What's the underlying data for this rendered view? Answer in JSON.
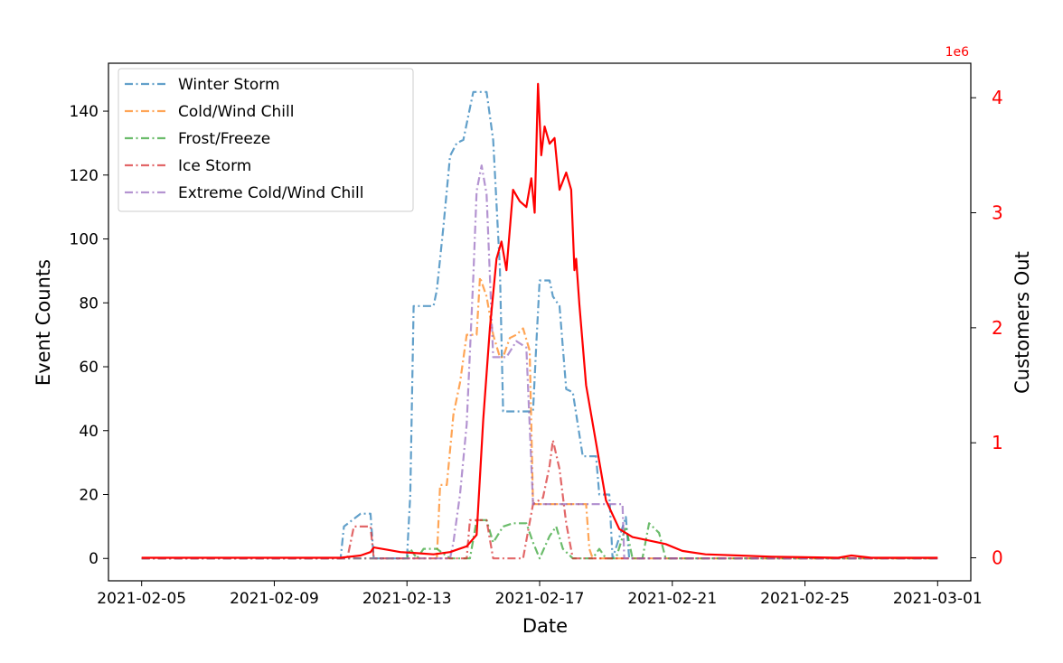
{
  "chart_data": {
    "type": "line",
    "x_type": "date",
    "xlabel": "Date",
    "ylabel": "Event Counts",
    "y2label": "Customers Out",
    "y2_offset_text": "1e6",
    "xlim": [
      "2021-02-04",
      "2021-03-02"
    ],
    "ylim": [
      -7,
      155
    ],
    "y2lim": [
      -0.2,
      4.3
    ],
    "x_ticks": [
      "2021-02-05",
      "2021-02-09",
      "2021-02-13",
      "2021-02-17",
      "2021-02-21",
      "2021-02-25",
      "2021-03-01"
    ],
    "y_ticks": [
      0,
      20,
      40,
      60,
      80,
      100,
      120,
      140
    ],
    "y2_ticks": [
      0,
      1,
      2,
      3,
      4
    ],
    "legend_position": "top-left",
    "grid": false,
    "series": [
      {
        "name": "Winter Storm",
        "color": "#1f77b4",
        "axis": "left",
        "style": "dashdot",
        "points": [
          [
            "2021-02-05",
            0
          ],
          [
            "2021-02-11",
            0
          ],
          [
            "2021-02-11.1",
            10
          ],
          [
            "2021-02-11.6",
            14
          ],
          [
            "2021-02-11.9",
            14
          ],
          [
            "2021-02-12",
            0
          ],
          [
            "2021-02-13",
            0
          ],
          [
            "2021-02-13.1",
            20
          ],
          [
            "2021-02-13.2",
            79
          ],
          [
            "2021-02-13.8",
            79
          ],
          [
            "2021-02-13.9",
            84
          ],
          [
            "2021-02-14.1",
            104
          ],
          [
            "2021-02-14.3",
            126
          ],
          [
            "2021-02-14.5",
            130
          ],
          [
            "2021-02-14.7",
            131
          ],
          [
            "2021-02-14.9",
            141
          ],
          [
            "2021-02-15",
            146
          ],
          [
            "2021-02-15.4",
            146
          ],
          [
            "2021-02-15.6",
            131
          ],
          [
            "2021-02-15.8",
            91
          ],
          [
            "2021-02-15.9",
            46
          ],
          [
            "2021-02-16.8",
            46
          ],
          [
            "2021-02-16.9",
            67
          ],
          [
            "2021-02-17",
            87
          ],
          [
            "2021-02-17.3",
            87
          ],
          [
            "2021-02-17.4",
            82
          ],
          [
            "2021-02-17.6",
            79
          ],
          [
            "2021-02-17.8",
            53
          ],
          [
            "2021-02-18",
            52
          ],
          [
            "2021-02-18.3",
            32
          ],
          [
            "2021-02-18.7",
            32
          ],
          [
            "2021-02-18.8",
            20
          ],
          [
            "2021-02-19.1",
            20
          ],
          [
            "2021-02-19.2",
            0
          ],
          [
            "2021-02-19.6",
            13
          ],
          [
            "2021-02-19.7",
            0
          ],
          [
            "2021-03-01",
            0
          ]
        ]
      },
      {
        "name": "Cold/Wind Chill",
        "color": "#ff7f0e",
        "axis": "left",
        "style": "dashdot",
        "points": [
          [
            "2021-02-05",
            0
          ],
          [
            "2021-02-13.9",
            0
          ],
          [
            "2021-02-14",
            23
          ],
          [
            "2021-02-14.2",
            23
          ],
          [
            "2021-02-14.4",
            45
          ],
          [
            "2021-02-14.6",
            55
          ],
          [
            "2021-02-14.8",
            70
          ],
          [
            "2021-02-15.1",
            70
          ],
          [
            "2021-02-15.2",
            88
          ],
          [
            "2021-02-15.4",
            82
          ],
          [
            "2021-02-15.6",
            70
          ],
          [
            "2021-02-15.8",
            63
          ],
          [
            "2021-02-15.9",
            63
          ],
          [
            "2021-02-16.1",
            69
          ],
          [
            "2021-02-16.3",
            70
          ],
          [
            "2021-02-16.5",
            72
          ],
          [
            "2021-02-16.7",
            65
          ],
          [
            "2021-02-16.8",
            17
          ],
          [
            "2021-02-17.6",
            17
          ],
          [
            "2021-02-18.4",
            17
          ],
          [
            "2021-02-18.5",
            3
          ],
          [
            "2021-02-18.6",
            0
          ],
          [
            "2021-03-01",
            0
          ]
        ]
      },
      {
        "name": "Frost/Freeze",
        "color": "#2ca02c",
        "axis": "left",
        "style": "dashdot",
        "points": [
          [
            "2021-02-05",
            0
          ],
          [
            "2021-02-13",
            0
          ],
          [
            "2021-02-13.1",
            3
          ],
          [
            "2021-02-13.3",
            0
          ],
          [
            "2021-02-13.5",
            3
          ],
          [
            "2021-02-13.9",
            3
          ],
          [
            "2021-02-14.3",
            0
          ],
          [
            "2021-02-14.9",
            0
          ],
          [
            "2021-02-15.1",
            12
          ],
          [
            "2021-02-15.4",
            12
          ],
          [
            "2021-02-15.6",
            5
          ],
          [
            "2021-02-15.9",
            10
          ],
          [
            "2021-02-16.2",
            11
          ],
          [
            "2021-02-16.6",
            11
          ],
          [
            "2021-02-16.8",
            5
          ],
          [
            "2021-02-17",
            0
          ],
          [
            "2021-02-17.3",
            7
          ],
          [
            "2021-02-17.5",
            10
          ],
          [
            "2021-02-17.7",
            3
          ],
          [
            "2021-02-18",
            0
          ],
          [
            "2021-02-18.6",
            0
          ],
          [
            "2021-02-18.8",
            3
          ],
          [
            "2021-02-19",
            0
          ],
          [
            "2021-02-19.3",
            0
          ],
          [
            "2021-02-19.6",
            10
          ],
          [
            "2021-02-19.8",
            0
          ],
          [
            "2021-02-20.1",
            0
          ],
          [
            "2021-02-20.3",
            11
          ],
          [
            "2021-02-20.6",
            8
          ],
          [
            "2021-02-20.8",
            0
          ],
          [
            "2021-03-01",
            0
          ]
        ]
      },
      {
        "name": "Ice Storm",
        "color": "#d62728",
        "axis": "left",
        "style": "dashdot",
        "points": [
          [
            "2021-02-05",
            0
          ],
          [
            "2021-02-11.2",
            0
          ],
          [
            "2021-02-11.4",
            10
          ],
          [
            "2021-02-11.9",
            10
          ],
          [
            "2021-02-12",
            0
          ],
          [
            "2021-02-14.8",
            0
          ],
          [
            "2021-02-14.9",
            12
          ],
          [
            "2021-02-15.4",
            12
          ],
          [
            "2021-02-15.6",
            0
          ],
          [
            "2021-02-16.5",
            0
          ],
          [
            "2021-02-16.8",
            17
          ],
          [
            "2021-02-17.1",
            19
          ],
          [
            "2021-02-17.3",
            29
          ],
          [
            "2021-02-17.4",
            37
          ],
          [
            "2021-02-17.6",
            28
          ],
          [
            "2021-02-17.8",
            11
          ],
          [
            "2021-02-18",
            0
          ],
          [
            "2021-03-01",
            0
          ]
        ]
      },
      {
        "name": "Extreme Cold/Wind Chill",
        "color": "#9467bd",
        "axis": "left",
        "style": "dashdot",
        "points": [
          [
            "2021-02-05",
            0
          ],
          [
            "2021-02-14.3",
            0
          ],
          [
            "2021-02-14.4",
            5
          ],
          [
            "2021-02-14.6",
            20
          ],
          [
            "2021-02-14.8",
            42
          ],
          [
            "2021-02-15",
            88
          ],
          [
            "2021-02-15.1",
            115
          ],
          [
            "2021-02-15.25",
            123
          ],
          [
            "2021-02-15.4",
            114
          ],
          [
            "2021-02-15.6",
            63
          ],
          [
            "2021-02-16",
            63
          ],
          [
            "2021-02-16.3",
            68
          ],
          [
            "2021-02-16.6",
            66
          ],
          [
            "2021-02-16.8",
            17
          ],
          [
            "2021-02-17.5",
            17
          ],
          [
            "2021-02-18.5",
            17
          ],
          [
            "2021-02-19.5",
            17
          ],
          [
            "2021-02-19.55",
            0
          ],
          [
            "2021-03-01",
            0
          ]
        ]
      },
      {
        "name": "",
        "color": "#ff0000",
        "axis": "right",
        "style": "solid",
        "points": [
          [
            "2021-02-05",
            0.0
          ],
          [
            "2021-02-11",
            0.0
          ],
          [
            "2021-02-11.6",
            0.02
          ],
          [
            "2021-02-11.9",
            0.05
          ],
          [
            "2021-02-12",
            0.09
          ],
          [
            "2021-02-12.4",
            0.07
          ],
          [
            "2021-02-12.8",
            0.05
          ],
          [
            "2021-02-13.3",
            0.04
          ],
          [
            "2021-02-13.8",
            0.03
          ],
          [
            "2021-02-14.3",
            0.05
          ],
          [
            "2021-02-14.8",
            0.1
          ],
          [
            "2021-02-15.1",
            0.2
          ],
          [
            "2021-02-15.3",
            1.2
          ],
          [
            "2021-02-15.5",
            2.0
          ],
          [
            "2021-02-15.7",
            2.6
          ],
          [
            "2021-02-15.85",
            2.75
          ],
          [
            "2021-02-16",
            2.5
          ],
          [
            "2021-02-16.2",
            3.2
          ],
          [
            "2021-02-16.4",
            3.1
          ],
          [
            "2021-02-16.6",
            3.05
          ],
          [
            "2021-02-16.75",
            3.3
          ],
          [
            "2021-02-16.85",
            3.0
          ],
          [
            "2021-02-16.95",
            4.12
          ],
          [
            "2021-02-17.05",
            3.5
          ],
          [
            "2021-02-17.15",
            3.75
          ],
          [
            "2021-02-17.3",
            3.6
          ],
          [
            "2021-02-17.45",
            3.65
          ],
          [
            "2021-02-17.6",
            3.2
          ],
          [
            "2021-02-17.8",
            3.35
          ],
          [
            "2021-02-17.95",
            3.2
          ],
          [
            "2021-02-18.05",
            2.5
          ],
          [
            "2021-02-18.1",
            2.6
          ],
          [
            "2021-02-18.2",
            2.2
          ],
          [
            "2021-02-18.4",
            1.5
          ],
          [
            "2021-02-18.7",
            1.0
          ],
          [
            "2021-02-19",
            0.5
          ],
          [
            "2021-02-19.4",
            0.25
          ],
          [
            "2021-02-19.8",
            0.18
          ],
          [
            "2021-02-20.3",
            0.15
          ],
          [
            "2021-02-20.8",
            0.12
          ],
          [
            "2021-02-21.3",
            0.06
          ],
          [
            "2021-02-22",
            0.03
          ],
          [
            "2021-02-23",
            0.02
          ],
          [
            "2021-02-24",
            0.01
          ],
          [
            "2021-02-26",
            0.0
          ],
          [
            "2021-02-26.4",
            0.02
          ],
          [
            "2021-02-27",
            0.0
          ],
          [
            "2021-03-01",
            0.0
          ]
        ]
      }
    ]
  }
}
